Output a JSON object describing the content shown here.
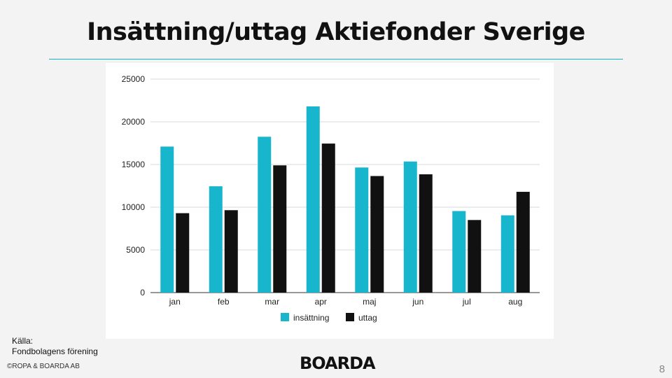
{
  "slide": {
    "title": "Insättning/uttag Aktiefonder Sverige",
    "source_label": "Källa:",
    "source_name": "Fondbolagens förening",
    "copyright": "©ROPA & BOARDA AB",
    "logo": "BOARDA",
    "page_number": "8"
  },
  "colors": {
    "accent": "#13b3c9",
    "insattning": "#17b6cc",
    "uttag": "#111111",
    "gridline": "#d9d9d9"
  },
  "chart_data": {
    "type": "bar",
    "categories": [
      "jan",
      "feb",
      "mar",
      "apr",
      "maj",
      "jun",
      "jul",
      "aug"
    ],
    "series": [
      {
        "name": "insättning",
        "values": [
          17100,
          12450,
          18250,
          21800,
          14650,
          15350,
          9550,
          9050
        ]
      },
      {
        "name": "uttag",
        "values": [
          9300,
          9650,
          14900,
          17450,
          13650,
          13850,
          8500,
          11800
        ]
      }
    ],
    "y_ticks": [
      0,
      5000,
      10000,
      15000,
      20000,
      25000
    ],
    "ylim": [
      0,
      25000
    ],
    "grid": true,
    "legend_position": "bottom-center"
  }
}
